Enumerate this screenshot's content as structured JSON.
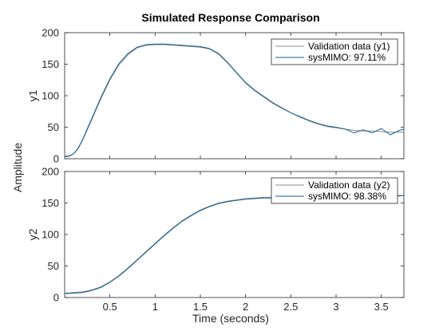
{
  "chart_data": {
    "type": "line",
    "title": "Simulated Response Comparison",
    "xlabel": "Time (seconds)",
    "ylabel": "Amplitude",
    "colors": {
      "validation": "#8c8c8c",
      "model": "#0f5f96",
      "axes": "#262626"
    },
    "panels": [
      {
        "ylabel": "y1",
        "xlim": [
          0,
          3.75
        ],
        "ylim": [
          0,
          200
        ],
        "yticks": [
          0,
          50,
          100,
          150,
          200
        ],
        "legend": "top-right",
        "series": [
          {
            "name": "Validation data (y1)",
            "x": [
              0,
              0.05,
              0.1,
              0.15,
              0.2,
              0.3,
              0.4,
              0.5,
              0.6,
              0.7,
              0.8,
              0.9,
              1.0,
              1.1,
              1.2,
              1.3,
              1.4,
              1.5,
              1.6,
              1.7,
              1.8,
              1.9,
              2.0,
              2.1,
              2.2,
              2.3,
              2.4,
              2.5,
              2.6,
              2.7,
              2.8,
              2.9,
              3.0,
              3.1,
              3.2,
              3.3,
              3.4,
              3.5,
              3.6,
              3.7,
              3.75
            ],
            "y": [
              4,
              5,
              8,
              16,
              30,
              62,
              95,
              125,
              149,
              165,
              176,
              180,
              181,
              181,
              180,
              179,
              178,
              177,
              174,
              166,
              152,
              136,
              120,
              108,
              98,
              88,
              80,
              73,
              66,
              60,
              55,
              51,
              49,
              47,
              45,
              44,
              44,
              43,
              42,
              42,
              42
            ]
          },
          {
            "name": "sysMIMO: 97.11%",
            "x": [
              0,
              0.05,
              0.1,
              0.15,
              0.2,
              0.3,
              0.4,
              0.5,
              0.6,
              0.7,
              0.8,
              0.9,
              1.0,
              1.1,
              1.2,
              1.3,
              1.4,
              1.5,
              1.6,
              1.7,
              1.8,
              1.9,
              2.0,
              2.1,
              2.2,
              2.3,
              2.4,
              2.5,
              2.6,
              2.7,
              2.8,
              2.9,
              3.0,
              3.1,
              3.2,
              3.3,
              3.4,
              3.5,
              3.6,
              3.7,
              3.75
            ],
            "y": [
              3,
              4,
              8,
              17,
              31,
              64,
              97,
              127,
              151,
              167,
              177,
              181,
              182,
              182,
              181,
              180,
              179,
              178,
              175,
              167,
              153,
              137,
              121,
              109,
              99,
              89,
              81,
              73,
              67,
              61,
              56,
              52,
              50,
              47,
              41,
              46,
              41,
              48,
              38,
              45,
              47
            ]
          }
        ]
      },
      {
        "ylabel": "y2",
        "xlim": [
          0,
          3.75
        ],
        "ylim": [
          0,
          200
        ],
        "yticks": [
          0,
          50,
          100,
          150,
          200
        ],
        "xticks": [
          0.5,
          1,
          1.5,
          2,
          2.5,
          3,
          3.5
        ],
        "xticklabels": [
          "0.5",
          "1",
          "1.5",
          "2",
          "2.5",
          "3",
          "3.5"
        ],
        "legend": "top-right",
        "series": [
          {
            "name": "Validation data (y2)",
            "x": [
              0,
              0.1,
              0.2,
              0.3,
              0.4,
              0.5,
              0.6,
              0.7,
              0.8,
              0.9,
              1.0,
              1.1,
              1.2,
              1.3,
              1.4,
              1.5,
              1.6,
              1.7,
              1.8,
              1.9,
              2.0,
              2.1,
              2.2,
              2.3,
              2.4,
              2.5,
              2.6,
              2.7,
              2.8,
              2.9,
              3.0,
              3.1,
              3.2,
              3.3,
              3.4,
              3.5,
              3.6,
              3.7,
              3.75
            ],
            "y": [
              7,
              8,
              9,
              12,
              17,
              25,
              35,
              47,
              60,
              73,
              86,
              99,
              111,
              122,
              131,
              139,
              145,
              150,
              153,
              155,
              157,
              158,
              159,
              159,
              160,
              160,
              160,
              161,
              161,
              161,
              161,
              162,
              162,
              162,
              162,
              162,
              162,
              162,
              162
            ]
          },
          {
            "name": "sysMIMO: 98.38%",
            "x": [
              0,
              0.1,
              0.2,
              0.3,
              0.4,
              0.5,
              0.6,
              0.7,
              0.8,
              0.9,
              1.0,
              1.1,
              1.2,
              1.3,
              1.4,
              1.5,
              1.6,
              1.7,
              1.8,
              1.9,
              2.0,
              2.1,
              2.2,
              2.3,
              2.4,
              2.5,
              2.6,
              2.7,
              2.8,
              2.9,
              3.0,
              3.1,
              3.2,
              3.3,
              3.4,
              3.5,
              3.6,
              3.7,
              3.75
            ],
            "y": [
              6,
              7,
              8,
              11,
              16,
              24,
              34,
              46,
              59,
              72,
              85,
              98,
              110,
              121,
              130,
              138,
              144,
              149,
              152,
              154,
              156,
              157,
              158,
              158,
              159,
              159,
              160,
              160,
              161,
              161,
              161,
              161,
              162,
              162,
              162,
              162,
              162,
              161,
              162
            ]
          }
        ]
      }
    ]
  }
}
